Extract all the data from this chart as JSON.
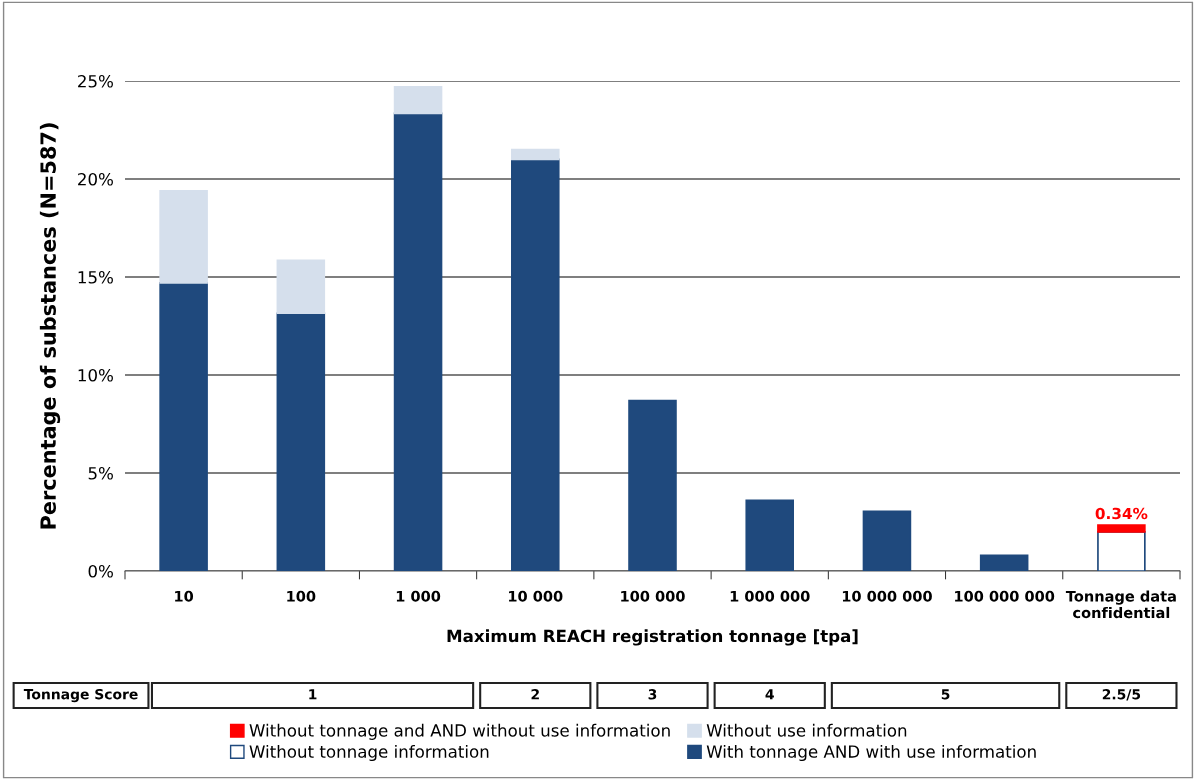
{
  "chart_data": {
    "type": "bar",
    "stacked": true,
    "categories": [
      "10",
      "100",
      "1 000",
      "10 000",
      "100 000",
      "1 000 000",
      "10 000 000",
      "100 000 000",
      "Tonnage data\nconfidential"
    ],
    "xlabel": "Maximum REACH registration tonnage [tpa]",
    "ylabel": "Percentage of substances (N=587)",
    "ylim": [
      0,
      25
    ],
    "yticks": [
      {
        "value": 0,
        "label": "0%"
      },
      {
        "value": 5,
        "label": "5%"
      },
      {
        "value": 10,
        "label": "10%"
      },
      {
        "value": 15,
        "label": "15%"
      },
      {
        "value": 20,
        "label": "20%"
      },
      {
        "value": 25,
        "label": "25%"
      }
    ],
    "grid": "y",
    "legend": "bottom",
    "series": [
      {
        "name": "With tonnage AND with use information",
        "color": "#1f497d",
        "values": [
          14.7,
          13.15,
          23.35,
          21.0,
          8.7,
          3.6,
          3.05,
          0.8,
          null
        ]
      },
      {
        "name": "Without use information",
        "color": "#d5dfec",
        "values": [
          4.7,
          2.7,
          1.35,
          0.5,
          null,
          null,
          null,
          null,
          null
        ]
      },
      {
        "name": "Without tonnage information",
        "color": "#ffffff",
        "values": [
          null,
          null,
          null,
          null,
          null,
          null,
          null,
          null,
          2.0
        ]
      },
      {
        "name": "Without tonnage and AND without use information",
        "color": "#ff0000",
        "values": [
          null,
          null,
          null,
          null,
          null,
          null,
          null,
          null,
          0.34
        ],
        "value_labels": [
          null,
          null,
          null,
          null,
          null,
          null,
          null,
          null,
          "0.34%"
        ]
      }
    ],
    "annotations": [
      "Tonnage Score",
      "1",
      "2",
      "3",
      "4",
      "5",
      "2.5/5"
    ]
  }
}
